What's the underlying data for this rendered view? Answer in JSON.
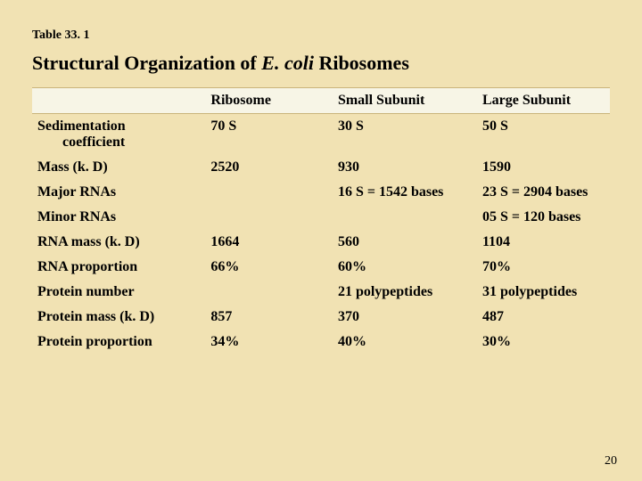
{
  "tableNumber": "Table 33. 1",
  "titlePrefix": "Structural Organization of ",
  "titleEmph": "E. coli",
  "titleSuffix": " Ribosomes",
  "columns": [
    "",
    "Ribosome",
    "Small Subunit",
    "Large Subunit"
  ],
  "rows": [
    {
      "label": "Sedimentation",
      "sublabel": "coefficient",
      "cells": [
        "70 S",
        "30 S",
        "50 S"
      ]
    },
    {
      "label": "Mass (k. D)",
      "cells": [
        "2520",
        "930",
        "1590"
      ]
    },
    {
      "label": "Major RNAs",
      "cells": [
        "",
        "16 S = 1542 bases",
        "23 S = 2904 bases"
      ]
    },
    {
      "label": "Minor RNAs",
      "cells": [
        "",
        "",
        "05 S = 120 bases"
      ]
    },
    {
      "label": "RNA mass (k. D)",
      "cells": [
        "1664",
        "560",
        "1104"
      ]
    },
    {
      "label": "RNA proportion",
      "cells": [
        "66%",
        "60%",
        "70%"
      ]
    },
    {
      "label": "Protein number",
      "cells": [
        "",
        "21 polypeptides",
        "31 polypeptides"
      ]
    },
    {
      "label": "Protein mass (k. D)",
      "cells": [
        "857",
        "370",
        "487"
      ]
    },
    {
      "label": "Protein proportion",
      "cells": [
        "34%",
        "40%",
        "30%"
      ]
    }
  ],
  "pageNumber": "20",
  "style": {
    "background": "#f1e2b3",
    "headerBackground": "#f7f5e6",
    "headerBorder": "#c9b47a",
    "fontBase": 16,
    "fontTitle": 22,
    "fontTableNo": 14,
    "fontPageNum": 14,
    "textColor": "#000000"
  }
}
